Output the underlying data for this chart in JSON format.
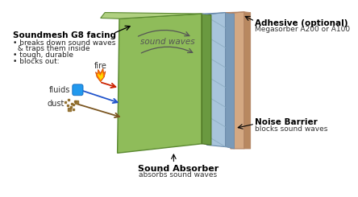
{
  "background_color": "#ffffff",
  "foam_color": "#8fbc5a",
  "foam_top_color": "#b0d080",
  "foam_side_color": "#6a9940",
  "barrier_color": "#a8c4dc",
  "barrier_side_color": "#7a9ab8",
  "adhesive_color": "#d4a882",
  "adhesive_side_color": "#b88860",
  "sound_wave_color": "#666666",
  "arrow_fire_color": "#cc2200",
  "arrow_fluid_color": "#2255cc",
  "arrow_dust_color": "#7a5520",
  "left_label_title": "Soundmesh G8 facing",
  "left_bullets": [
    "• breaks down sound waves",
    "  & traps them inside",
    "• tough, durable",
    "• blocks out:"
  ],
  "fire_label": "fire",
  "fluid_label": "fluids",
  "dust_label": "dust",
  "right_label1_title": "Adhesive (optional)",
  "right_label1_sub": "Megasorber A200 or A100",
  "right_label2_title": "Noise Barrier",
  "right_label2_sub": "blocks sound waves",
  "bottom_label_title": "Sound Absorber",
  "bottom_label_sub": "absorbs sound waves",
  "sound_waves_text": "sound waves"
}
